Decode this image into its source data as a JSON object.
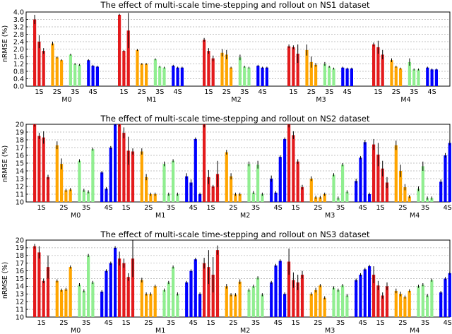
{
  "colors": {
    "1S": "#e31a1c",
    "2S": "#ffa500",
    "3S": "#90ee90",
    "4S": "#0000ff",
    "grid": "#b0b0b0",
    "err": "#000000"
  },
  "chart_data": [
    {
      "type": "bar",
      "title": "The effect of multi-scale time-stepping and rollout on NS1 dataset",
      "ylabel": "nRMSE (%)",
      "ylim": [
        0,
        4.0
      ],
      "yticks": [
        "0.0",
        "0.4",
        "0.8",
        "1.2",
        "1.6",
        "2.0",
        "2.4",
        "2.8",
        "3.2",
        "3.6",
        "4.0"
      ],
      "grid": true,
      "groups": [
        "M0",
        "M1",
        "M2",
        "M3",
        "M4"
      ],
      "subgroups": [
        "1S",
        "2S",
        "3S",
        "4S"
      ],
      "values": [
        [
          [
            3.6,
            2.4,
            1.9
          ],
          [
            2.3,
            1.55,
            1.4
          ],
          [
            1.7,
            1.2,
            1.15
          ],
          [
            1.4,
            1.1,
            1.05
          ]
        ],
        [
          [
            3.85,
            1.9,
            3.0
          ],
          [
            1.95,
            1.2,
            1.2
          ],
          [
            1.45,
            1.05,
            1.0
          ],
          [
            1.1,
            1.0,
            1.0
          ]
        ],
        [
          [
            2.5,
            1.9,
            1.5
          ],
          [
            1.8,
            1.7,
            1.0
          ],
          [
            1.55,
            1.05,
            1.0
          ],
          [
            1.1,
            1.0,
            1.0
          ]
        ],
        [
          [
            2.15,
            2.1,
            1.75
          ],
          [
            1.95,
            1.3,
            1.15
          ],
          [
            1.2,
            1.05,
            0.95
          ],
          [
            1.0,
            0.95,
            0.95
          ]
        ],
        [
          [
            2.25,
            2.1,
            1.7
          ],
          [
            1.4,
            1.05,
            0.95
          ],
          [
            1.3,
            0.9,
            0.9
          ],
          [
            1.0,
            0.9,
            0.9
          ]
        ]
      ],
      "errors": [
        [
          [
            0.25,
            0.35,
            0.15
          ],
          [
            0.1,
            0.05,
            0.05
          ],
          [
            0.05,
            0.05,
            0.05
          ],
          [
            0.05,
            0.05,
            0.05
          ]
        ],
        [
          [
            0.05,
            0.05,
            0.95
          ],
          [
            0.05,
            0.05,
            0.05
          ],
          [
            0.05,
            0.05,
            0.05
          ],
          [
            0.05,
            0.05,
            0.05
          ]
        ],
        [
          [
            0.1,
            0.15,
            0.15
          ],
          [
            0.2,
            0.25,
            0.05
          ],
          [
            0.15,
            0.05,
            0.05
          ],
          [
            0.05,
            0.05,
            0.05
          ]
        ],
        [
          [
            0.1,
            0.1,
            0.5
          ],
          [
            0.3,
            0.3,
            0.1
          ],
          [
            0.1,
            0.05,
            0.05
          ],
          [
            0.05,
            0.05,
            0.05
          ]
        ],
        [
          [
            0.1,
            0.35,
            0.25
          ],
          [
            0.1,
            0.05,
            0.05
          ],
          [
            0.2,
            0.05,
            0.05
          ],
          [
            0.05,
            0.05,
            0.05
          ]
        ]
      ]
    },
    {
      "type": "bar",
      "title": "The effect of multi-scale time-stepping and rollout on NS2 dataset",
      "ylabel": "nRMSE (%)",
      "ylim": [
        10,
        20
      ],
      "yticks": [
        "10",
        "11",
        "12",
        "13",
        "14",
        "15",
        "16",
        "17",
        "18",
        "19",
        "20"
      ],
      "grid": true,
      "groups": [
        "M0",
        "M1",
        "M2",
        "M3",
        "M4"
      ],
      "subgroups": [
        "1S",
        "2S",
        "3S",
        "4S"
      ],
      "values": [
        [
          [
            20.0,
            18.5,
            18.3,
            13.2
          ],
          [
            17.3,
            14.9,
            11.5,
            11.6
          ],
          [
            15.3,
            11.5,
            11.3,
            16.8
          ],
          [
            13.8,
            11.7,
            17.0,
            20.0
          ]
        ],
        [
          [
            20.0,
            18.9,
            16.6,
            16.5
          ],
          [
            16.5,
            13.2,
            11.0,
            11.0
          ],
          [
            14.9,
            11.0,
            15.3,
            11.0
          ],
          [
            13.3,
            12.5,
            18.1,
            11.0
          ]
        ],
        [
          [
            20.0,
            13.2,
            12.0,
            13.6
          ],
          [
            16.4,
            13.3,
            11.0,
            11.0
          ],
          [
            14.9,
            11.2,
            14.8,
            11.0
          ],
          [
            13.0,
            11.2,
            15.8,
            18.1
          ]
        ],
        [
          [
            20.0,
            18.6,
            15.2,
            11.9
          ],
          [
            13.0,
            10.6,
            10.6,
            11.0
          ],
          [
            13.5,
            10.5,
            14.8,
            11.3
          ],
          [
            12.7,
            15.7,
            17.7,
            11.0
          ]
        ],
        [
          [
            17.4,
            16.1,
            14.3,
            12.5
          ],
          [
            17.3,
            14.0,
            11.9,
            10.7
          ],
          [
            11.7,
            14.6,
            10.5,
            10.5
          ],
          [
            12.6,
            16.0,
            17.6,
            11.0
          ]
        ]
      ],
      "errors": [
        [
          [
            0.3,
            0.4,
            0.8,
            0.3
          ],
          [
            0.5,
            0.7,
            0.2,
            0.2
          ],
          [
            0.2,
            0.2,
            0.2,
            0.2
          ],
          [
            0.2,
            0.2,
            0.2,
            0.2
          ]
        ],
        [
          [
            0.3,
            0.7,
            1.8,
            0.4
          ],
          [
            0.4,
            0.4,
            0.2,
            0.2
          ],
          [
            0.3,
            0.2,
            0.2,
            0.2
          ],
          [
            0.4,
            0.4,
            0.2,
            0.2
          ]
        ],
        [
          [
            0.4,
            0.9,
            0.2,
            1.7
          ],
          [
            0.3,
            0.4,
            0.2,
            0.2
          ],
          [
            0.3,
            0.2,
            0.5,
            0.2
          ],
          [
            0.4,
            0.2,
            0.2,
            0.2
          ]
        ],
        [
          [
            0.4,
            0.5,
            0.3,
            0.3
          ],
          [
            0.3,
            0.2,
            0.2,
            0.2
          ],
          [
            0.2,
            0.2,
            0.2,
            0.2
          ],
          [
            0.3,
            0.2,
            0.3,
            0.2
          ]
        ],
        [
          [
            0.7,
            1.5,
            1.0,
            0.7
          ],
          [
            0.6,
            0.8,
            0.4,
            0.2
          ],
          [
            0.3,
            0.6,
            0.2,
            0.2
          ],
          [
            0.3,
            0.3,
            0.3,
            0.2
          ]
        ]
      ]
    },
    {
      "type": "bar",
      "title": "The effect of multi-scale time-stepping and rollout on NS3 dataset",
      "ylabel": "nRMSE (%)",
      "ylim": [
        10,
        20
      ],
      "yticks": [
        "10",
        "11",
        "12",
        "13",
        "14",
        "15",
        "16",
        "17",
        "18",
        "19",
        "20"
      ],
      "grid": true,
      "groups": [
        "M0",
        "M1",
        "M2",
        "M3",
        "M4"
      ],
      "subgroups": [
        "1S",
        "2S",
        "3S",
        "4S"
      ],
      "values": [
        [
          [
            19.2,
            18.4,
            14.7,
            16.5
          ],
          [
            14.7,
            13.5,
            13.6,
            16.5
          ],
          [
            14.2,
            13.4,
            18.0,
            14.5
          ],
          [
            13.3,
            16.0,
            17.0,
            19.0
          ]
        ],
        [
          [
            17.6,
            17.0,
            15.2,
            17.6
          ],
          [
            14.8,
            13.0,
            13.0,
            14.0
          ],
          [
            13.5,
            14.5,
            16.5,
            13.0
          ],
          [
            14.5,
            16.0,
            17.5,
            13.0
          ]
        ],
        [
          [
            17.0,
            16.5,
            15.5,
            18.7
          ],
          [
            14.0,
            12.9,
            12.9,
            14.6
          ],
          [
            13.5,
            14.0,
            15.1,
            12.9
          ],
          [
            14.5,
            16.7,
            17.3,
            13.0
          ]
        ],
        [
          [
            17.2,
            14.8,
            14.5,
            15.5
          ],
          [
            13.0,
            13.5,
            14.1,
            12.5
          ],
          [
            13.8,
            13.5,
            14.1,
            12.8
          ],
          [
            14.8,
            15.5,
            16.2,
            16.6
          ]
        ],
        [
          [
            15.5,
            14.1,
            12.8,
            14.0
          ],
          [
            13.4,
            13.0,
            12.6,
            13.4
          ],
          [
            14.0,
            14.2,
            12.8,
            14.8
          ],
          [
            13.2,
            15.0,
            15.7,
            16.1
          ]
        ]
      ],
      "errors": [
        [
          [
            0.3,
            0.8,
            0.3,
            1.5
          ],
          [
            0.2,
            0.2,
            0.2,
            0.2
          ],
          [
            0.2,
            0.2,
            0.2,
            0.2
          ],
          [
            0.2,
            0.2,
            0.2,
            0.2
          ]
        ],
        [
          [
            0.9,
            0.6,
            0.5,
            2.4
          ],
          [
            0.3,
            0.2,
            0.2,
            0.2
          ],
          [
            0.2,
            0.2,
            0.2,
            0.2
          ],
          [
            0.2,
            0.2,
            0.2,
            0.2
          ]
        ],
        [
          [
            0.7,
            2.2,
            2.3,
            0.6
          ],
          [
            0.3,
            0.2,
            0.2,
            0.3
          ],
          [
            0.2,
            0.2,
            0.2,
            0.2
          ],
          [
            0.2,
            0.2,
            0.2,
            0.2
          ]
        ],
        [
          [
            1.7,
            1.0,
            1.0,
            0.5
          ],
          [
            0.2,
            0.3,
            0.2,
            0.2
          ],
          [
            0.2,
            0.2,
            0.2,
            0.2
          ],
          [
            0.2,
            0.2,
            0.2,
            0.2
          ]
        ],
        [
          [
            1.1,
            0.6,
            0.4,
            0.5
          ],
          [
            0.3,
            0.3,
            0.2,
            0.2
          ],
          [
            0.2,
            0.2,
            0.2,
            0.2
          ],
          [
            0.2,
            0.2,
            0.2,
            0.2
          ]
        ]
      ]
    }
  ]
}
